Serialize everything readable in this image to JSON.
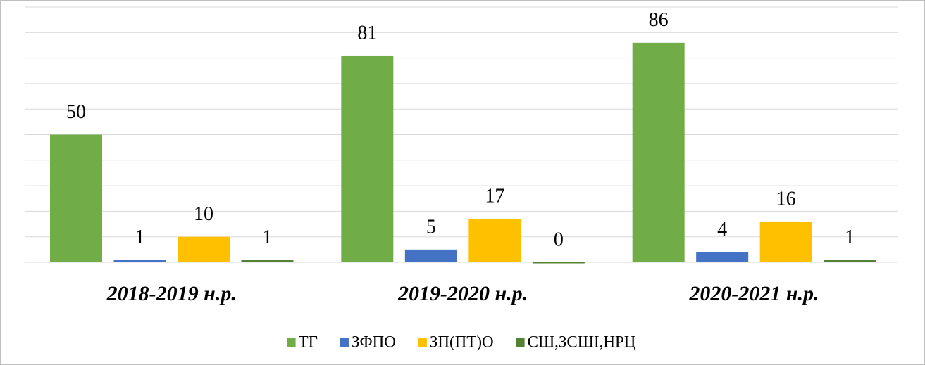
{
  "chart_data": {
    "type": "bar",
    "categories": [
      "2018-2019 н.р.",
      "2019-2020 н.р.",
      "2020-2021 н.р."
    ],
    "series": [
      {
        "name": "ТГ",
        "color": "#70ad47",
        "values": [
          50,
          81,
          86
        ]
      },
      {
        "name": "ЗФПО",
        "color": "#4472c4",
        "values": [
          1,
          5,
          4
        ]
      },
      {
        "name": "ЗП(ПТ)О",
        "color": "#ffc000",
        "values": [
          10,
          17,
          16
        ]
      },
      {
        "name": "СШ,ЗСШІ,НРЦ",
        "color": "#548235",
        "values": [
          1,
          0,
          1
        ]
      }
    ],
    "ylim": [
      0,
      100
    ],
    "yticks": [
      0,
      10,
      20,
      30,
      40,
      50,
      60,
      70,
      80,
      90,
      100
    ],
    "grid": true,
    "legend": "bottom"
  }
}
